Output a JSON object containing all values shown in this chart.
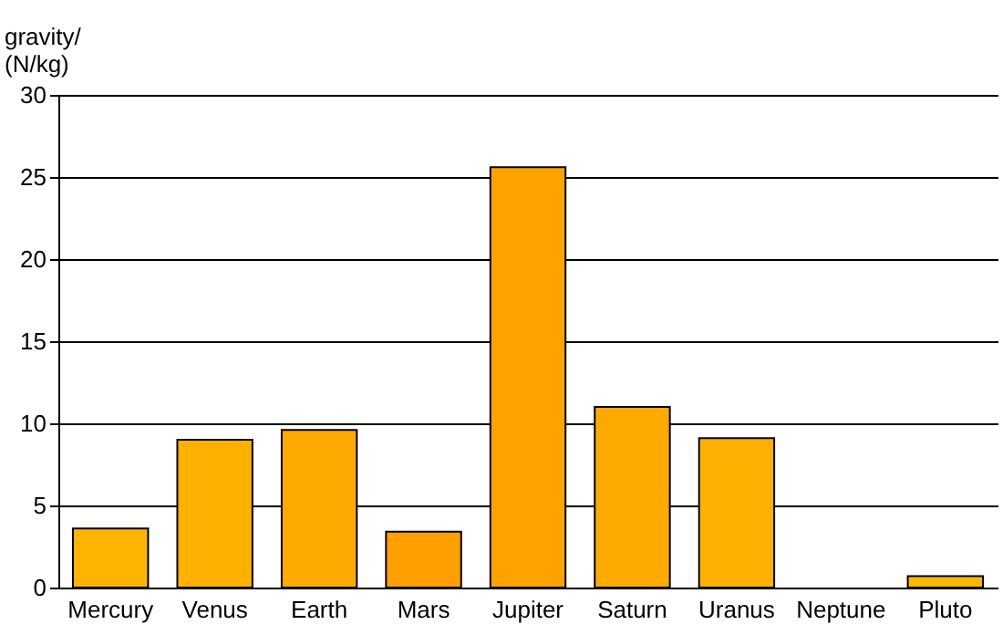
{
  "chart_data": {
    "type": "bar",
    "ylabel": "gravity/\n(N/kg)",
    "categories": [
      "Mercury",
      "Venus",
      "Earth",
      "Mars",
      "Jupiter",
      "Saturn",
      "Uranus",
      "Neptune",
      "Pluto"
    ],
    "values": [
      3.6,
      9.0,
      9.6,
      3.4,
      25.6,
      11.0,
      9.1,
      null,
      0.7
    ],
    "colors": [
      "#ffb400",
      "#ffb000",
      "#ffaa00",
      "#ffa000",
      "#ffa200",
      "#ffaa00",
      "#ffb000",
      "#ffb400",
      "#ffb800"
    ],
    "ylim": [
      0,
      30
    ],
    "yticks": [
      0,
      5,
      10,
      15,
      20,
      25,
      30
    ],
    "grid": "y"
  }
}
